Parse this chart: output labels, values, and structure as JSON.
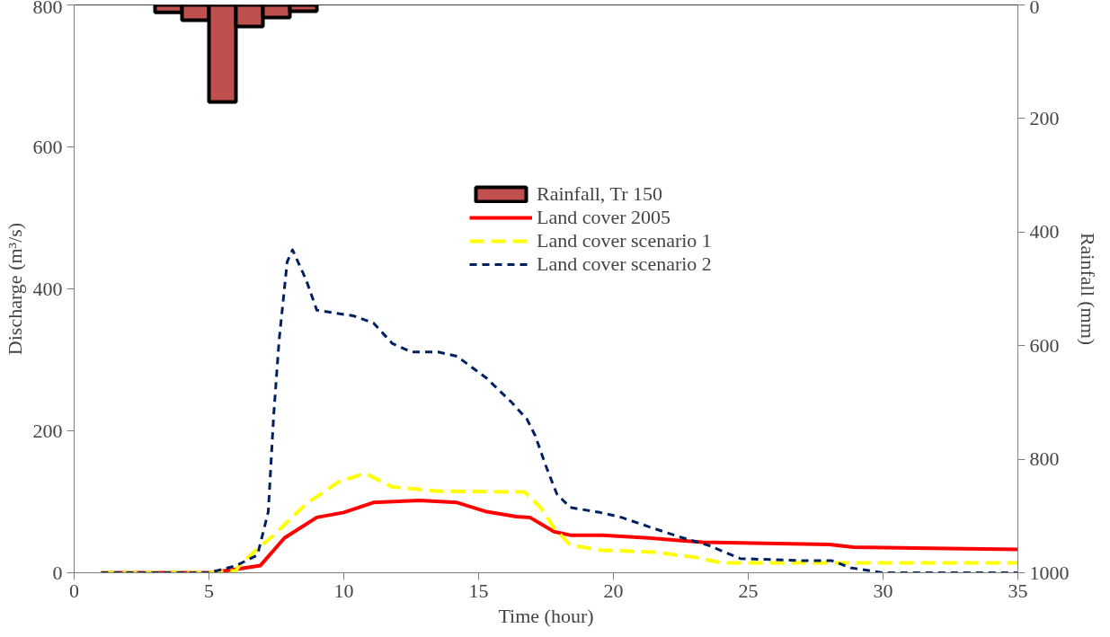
{
  "chart_data": {
    "type": "line",
    "xlabel": "Time (hour)",
    "ylabel": "Discharge (m³/s)",
    "y2label": "Rainfall (mm)",
    "xlim": [
      0,
      35
    ],
    "xticks": [
      0,
      5,
      10,
      15,
      20,
      25,
      30,
      35
    ],
    "ylim": [
      0,
      800
    ],
    "yticks": [
      0,
      200,
      400,
      600,
      800
    ],
    "y2lim": [
      1000,
      0
    ],
    "y2ticks": [
      0,
      200,
      400,
      600,
      800,
      1000
    ],
    "grid": false,
    "legend": "top right",
    "series": [
      {
        "name": "Rainfall, Tr 150",
        "type": "bar",
        "axis": "y2",
        "color": "#c0504d",
        "x": [
          3.5,
          4.5,
          5.5,
          6.5,
          7.5,
          8.5
        ],
        "values": [
          13,
          27,
          171,
          38,
          22,
          11
        ]
      },
      {
        "name": "Land cover 2005",
        "color": "#ff0000",
        "line_style": "solid",
        "x": [
          1,
          5,
          6.2,
          6.9,
          7.8,
          9,
          10,
          11.1,
          12.8,
          14.2,
          15.3,
          16.4,
          16.9,
          17.8,
          18.4,
          19.6,
          21.3,
          23.3,
          28,
          28.9,
          35
        ],
        "values": [
          0,
          0,
          6,
          10,
          49,
          78,
          85,
          99,
          102,
          99,
          86,
          79,
          78,
          58,
          53,
          53,
          49,
          43,
          40,
          36,
          33
        ]
      },
      {
        "name": "Land cover scenario 1",
        "color": "#ffff00",
        "line_style": "dashed",
        "x": [
          1,
          5,
          6,
          6.2,
          7.4,
          8.6,
          9.8,
          10.8,
          11.8,
          13.5,
          15.9,
          16.7,
          17.3,
          17.8,
          18.4,
          19.5,
          21.5,
          23,
          24,
          35
        ],
        "values": [
          0,
          0,
          3,
          14,
          53,
          97,
          128,
          140,
          121,
          115,
          114,
          114,
          92,
          63,
          39,
          32,
          29,
          22,
          14,
          14
        ]
      },
      {
        "name": "Land cover scenario 2",
        "color": "#002060",
        "line_style": "dotted",
        "x": [
          1,
          5,
          6,
          6.8,
          7.2,
          7.4,
          7.6,
          7.9,
          8.1,
          8.6,
          9.0,
          10.35,
          11.1,
          11.8,
          12.5,
          13.5,
          14.2,
          15.3,
          16.2,
          16.8,
          17.1,
          17.5,
          17.9,
          18.4,
          19.5,
          20.3,
          21.3,
          22.5,
          23.5,
          24.7,
          27,
          28.1,
          28.8,
          30,
          35
        ],
        "values": [
          0,
          0,
          10,
          25,
          86,
          222,
          327,
          438,
          455,
          413,
          370,
          362,
          352,
          323,
          311,
          311,
          305,
          274,
          241,
          216,
          193,
          150,
          111,
          92,
          85,
          78,
          65,
          50,
          39,
          20,
          17,
          17,
          7,
          0,
          0
        ]
      }
    ]
  }
}
